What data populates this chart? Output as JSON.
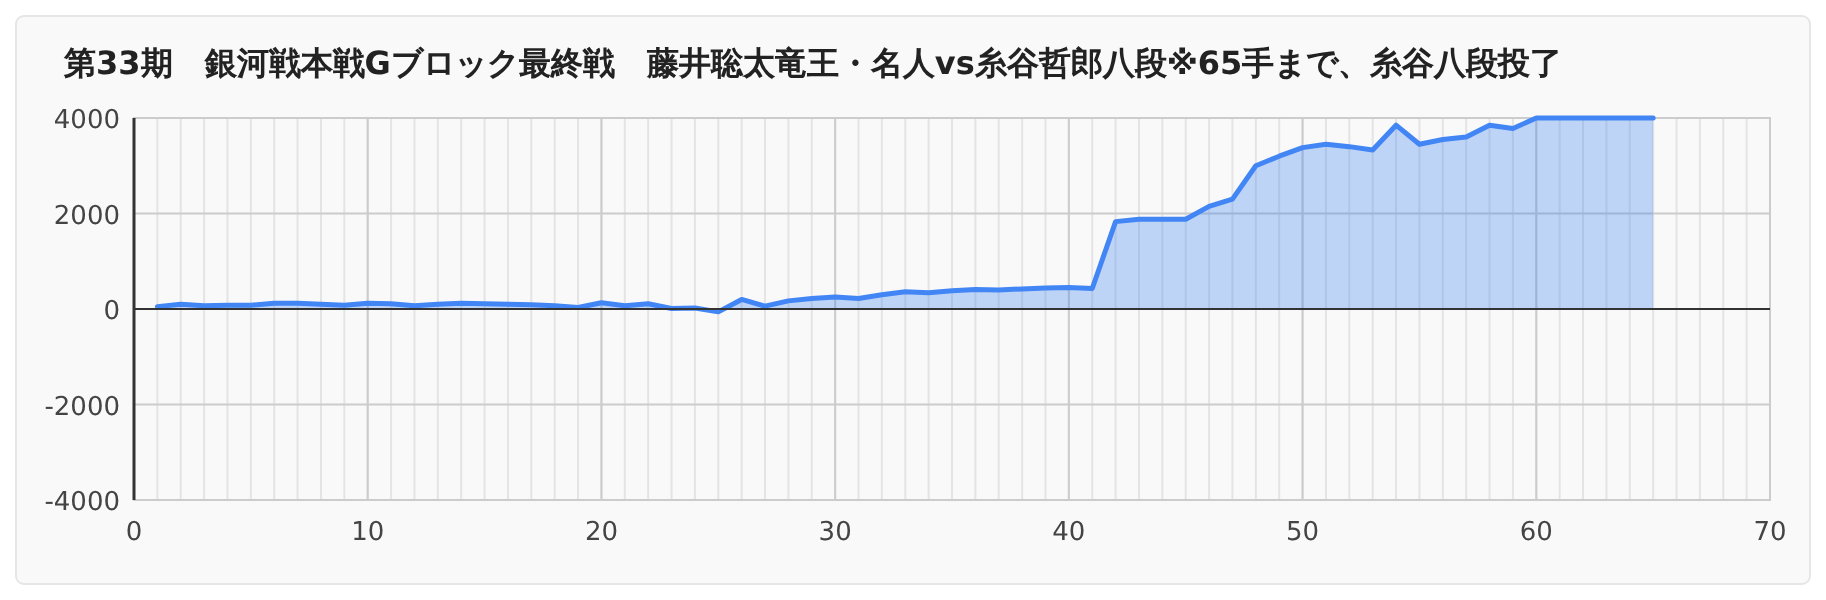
{
  "chart_data": {
    "type": "area",
    "title": "第33期　銀河戦本戦Gブロック最終戦　藤井聡太竜王・名人vs糸谷哲郎八段※65手まで、糸谷八段投了",
    "x": [
      1,
      2,
      3,
      4,
      5,
      6,
      7,
      8,
      9,
      10,
      11,
      12,
      13,
      14,
      15,
      16,
      17,
      18,
      19,
      20,
      21,
      22,
      23,
      24,
      25,
      26,
      27,
      28,
      29,
      30,
      31,
      32,
      33,
      34,
      35,
      36,
      37,
      38,
      39,
      40,
      41,
      42,
      43,
      44,
      45,
      46,
      47,
      48,
      49,
      50,
      51,
      52,
      53,
      54,
      55,
      56,
      57,
      58,
      59,
      60,
      61,
      62,
      63,
      64,
      65
    ],
    "series": [
      {
        "color": "#4285f4",
        "values": [
          50,
          100,
          70,
          80,
          80,
          120,
          120,
          100,
          80,
          120,
          110,
          70,
          100,
          120,
          110,
          100,
          90,
          70,
          30,
          130,
          70,
          110,
          10,
          20,
          -60,
          200,
          60,
          170,
          220,
          250,
          220,
          300,
          360,
          340,
          380,
          410,
          400,
          420,
          440,
          450,
          430,
          1830,
          1880,
          1880,
          1880,
          2150,
          2300,
          3000,
          3200,
          3380,
          3450,
          3400,
          3330,
          3850,
          3450,
          3550,
          3600,
          3850,
          3780,
          4000,
          4000,
          4000,
          4000,
          4000,
          4000
        ]
      }
    ],
    "xlim": [
      0,
      70
    ],
    "xticks": [
      0,
      10,
      20,
      30,
      40,
      50,
      60,
      70
    ],
    "ylim": [
      -4000,
      4000
    ],
    "yticks": [
      -4000,
      -2000,
      0,
      2000,
      4000
    ],
    "grid": true,
    "marker": "none",
    "line_style": "solid"
  }
}
